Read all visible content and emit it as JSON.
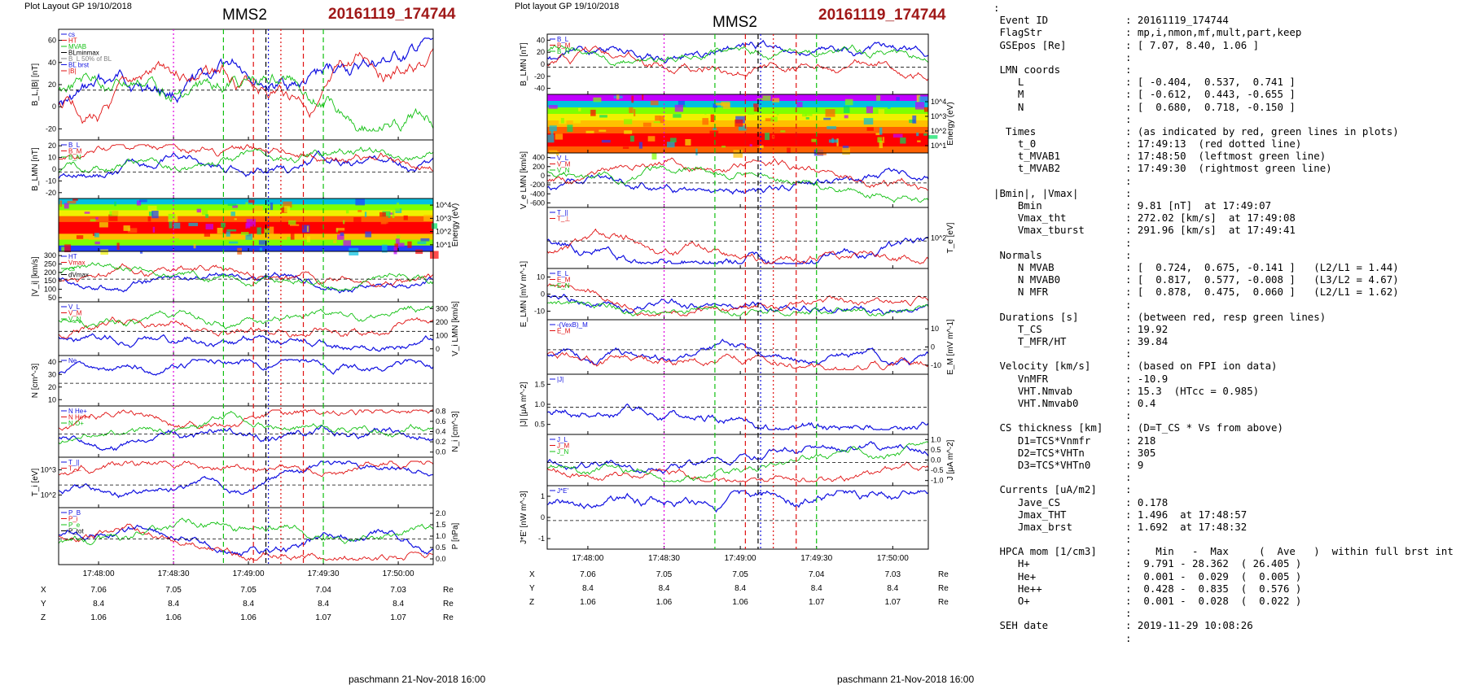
{
  "left_panel": {
    "layout_label": "Plot Layout GP 19/10/2018",
    "title": "MMS2",
    "event": "20161119_174744",
    "footer": "paschmann 21-Nov-2018 16:00"
  },
  "middle_panel": {
    "layout_label": "Plot layout GP 19/10/2018",
    "title": "MMS2",
    "event": "20161119_174744",
    "footer": "paschmann 21-Nov-2018 16:00"
  },
  "colors": {
    "blue": "#1010e0",
    "red": "#e01010",
    "green": "#10c010",
    "black": "#000000",
    "gray": "#808080",
    "magenta": "#e000e0",
    "event": "#a01818"
  },
  "chart_data": [
    {
      "type": "line",
      "panel": "left",
      "time_ticks": [
        "17:48:00",
        "17:48:30",
        "17:49:00",
        "17:49:30",
        "17:50:00"
      ],
      "time_range": [
        "17:47:44",
        "17:50:14"
      ],
      "markers": [
        {
          "kind": "magenta-dotted",
          "time": "17:48:30"
        },
        {
          "kind": "green-dashed",
          "time": "17:48:50"
        },
        {
          "kind": "black-dashed",
          "time": "17:49:07"
        },
        {
          "kind": "red-dashed",
          "time": "17:49:02"
        },
        {
          "kind": "red-dotted",
          "time": "17:49:13"
        },
        {
          "kind": "blue-dotted",
          "time": "17:49:08"
        },
        {
          "kind": "red-dashed",
          "time": "17:49:22"
        },
        {
          "kind": "green-dashed",
          "time": "17:49:30"
        }
      ],
      "ephemeris": {
        "labels": [
          "X",
          "Y",
          "Z"
        ],
        "unit": "Re",
        "columns": [
          {
            "X": "7.06",
            "Y": "8.4",
            "Z": "1.06"
          },
          {
            "X": "7.05",
            "Y": "8.4",
            "Z": "1.06"
          },
          {
            "X": "7.05",
            "Y": "8.4",
            "Z": "1.06"
          },
          {
            "X": "7.04",
            "Y": "8.4",
            "Z": "1.07"
          },
          {
            "X": "7.03",
            "Y": "8.4",
            "Z": "1.07"
          }
        ]
      },
      "panels": [
        {
          "ylabel": "B_L,|B| [nT]",
          "ticks": [
            "60",
            "40",
            "20",
            "0",
            "-20"
          ],
          "ylim": [
            -30,
            60
          ],
          "legend": [
            "cs",
            "HT",
            "MVAB",
            "BLminmax",
            "B_L 50% of BL",
            "BL brst",
            "|B|"
          ]
        },
        {
          "ylabel": "B_LMN [nT]",
          "ticks": [
            "20",
            "10",
            "0",
            "-10",
            "-20"
          ],
          "ylim": [
            -30,
            30
          ],
          "legend": [
            "B_L",
            "B_M",
            "B_N"
          ]
        },
        {
          "ylabel": "Energy (eV)",
          "ticks": [
            "10^4",
            "10^3",
            "10^2",
            "10^1"
          ],
          "type": "spectrogram"
        },
        {
          "ylabel": "|V_i| [km/s]",
          "ticks": [
            "300",
            "250",
            "200",
            "150",
            "100",
            "50"
          ],
          "ylim": [
            50,
            300
          ],
          "legend": [
            "HT",
            "Vmax",
            "cs",
            "dVmax"
          ]
        },
        {
          "ylabel": "V_i LMN [km/s]",
          "ticks": [
            "300",
            "200",
            "100",
            "0"
          ],
          "ylim": [
            -50,
            300
          ],
          "legend": [
            "V_L",
            "V_M",
            "V_N"
          ]
        },
        {
          "ylabel": "N [cm^-3]",
          "ticks": [
            "40",
            "30",
            "20",
            "10"
          ],
          "ylim": [
            0,
            50
          ],
          "legend": [
            "Ne"
          ]
        },
        {
          "ylabel": "N_i [cm^-3]",
          "ticks": [
            "0.8",
            "0.6",
            "0.4",
            "0.2",
            "0.0"
          ],
          "ylim": [
            0,
            0.8
          ],
          "legend": [
            "N He+",
            "N He++",
            "N O+"
          ]
        },
        {
          "ylabel": "T_i [eV]",
          "ticks": [
            "10^3",
            "10^2"
          ],
          "legend": [
            "T_||",
            "T_⊥"
          ]
        },
        {
          "ylabel": "P [nPa]",
          "ticks": [
            "2.0",
            "1.5",
            "1.0",
            "0.5",
            "0.0"
          ],
          "ylim": [
            0,
            2
          ],
          "legend": [
            "P_B",
            "P_i",
            "P_e",
            "P_tot"
          ]
        }
      ]
    },
    {
      "type": "line",
      "panel": "middle",
      "time_ticks": [
        "17:48:00",
        "17:48:30",
        "17:49:00",
        "17:49:30",
        "17:50:00"
      ],
      "time_range": [
        "17:47:44",
        "17:50:14"
      ],
      "ephemeris": {
        "labels": [
          "X",
          "Y",
          "Z"
        ],
        "unit": "Re",
        "columns": [
          {
            "X": "7.06",
            "Y": "8.4",
            "Z": "1.06"
          },
          {
            "X": "7.05",
            "Y": "8.4",
            "Z": "1.06"
          },
          {
            "X": "7.05",
            "Y": "8.4",
            "Z": "1.06"
          },
          {
            "X": "7.04",
            "Y": "8.4",
            "Z": "1.07"
          },
          {
            "X": "7.03",
            "Y": "8.4",
            "Z": "1.07"
          }
        ]
      },
      "panels": [
        {
          "ylabel": "B_LMN [nT]",
          "ticks": [
            "40",
            "20",
            "0",
            "-20",
            "-40"
          ],
          "ylim": [
            -50,
            45
          ],
          "legend": [
            "B_L",
            "B_M",
            "B_N"
          ]
        },
        {
          "ylabel": "Energy (eV)",
          "ticks": [
            "10^4",
            "10^3",
            "10^2",
            "10^1"
          ],
          "type": "spectrogram"
        },
        {
          "ylabel": "V_e LMN [km/s]",
          "ticks": [
            "400",
            "200",
            "0",
            "-200",
            "-400",
            "-600"
          ],
          "ylim": [
            -650,
            450
          ],
          "legend": [
            "V_L",
            "V_M",
            "V_N"
          ]
        },
        {
          "ylabel": "T_e [eV]",
          "ticks": [
            "10^2"
          ],
          "legend": [
            "T_||",
            "T_⊥"
          ]
        },
        {
          "ylabel": "E_LMN [mV m^-1]",
          "ticks": [
            "10",
            "0",
            "-10"
          ],
          "ylim": [
            -15,
            15
          ],
          "legend": [
            "E_L",
            "E_M",
            "E_N"
          ]
        },
        {
          "ylabel": "E_M [mV m^-1]",
          "ticks": [
            "10",
            "0",
            "-10"
          ],
          "ylim": [
            -15,
            15
          ],
          "legend": [
            "-(VexB)_M",
            "E_M"
          ]
        },
        {
          "ylabel": "|J| [μA m^-2]",
          "ticks": [
            "1.5",
            "1.0",
            "0.5"
          ],
          "ylim": [
            0,
            1.7
          ],
          "legend": [
            "|J|"
          ]
        },
        {
          "ylabel": "J [μA m^-2]",
          "ticks": [
            "1.0",
            "0.5",
            "0.0",
            "-0.5",
            "-1.0"
          ],
          "ylim": [
            -1.3,
            1.2
          ],
          "legend": [
            "J_L",
            "J_M",
            "J_N"
          ]
        },
        {
          "ylabel": "J*E' [nW m^-3]",
          "ticks": [
            "1",
            "0",
            "-1"
          ],
          "ylim": [
            -1.5,
            1.5
          ],
          "legend": [
            "J*E'"
          ]
        }
      ]
    }
  ],
  "info": {
    "rows": [
      {
        "k": ":",
        "v": ""
      },
      {
        "k": " Event ID",
        "v": ": 20161119_174744"
      },
      {
        "k": " FlagStr",
        "v": ": mp,i,nmon,mf,mult,part,keep"
      },
      {
        "k": " GSEpos [Re]",
        "v": ": [ 7.07, 8.40, 1.06 ]"
      },
      {
        "k": "",
        "v": ":"
      },
      {
        "k": " LMN coords",
        "v": ":"
      },
      {
        "k": "    L",
        "v": ": [ -0.404,  0.537,  0.741 ]"
      },
      {
        "k": "    M",
        "v": ": [ -0.612,  0.443, -0.655 ]"
      },
      {
        "k": "    N",
        "v": ": [  0.680,  0.718, -0.150 ]"
      },
      {
        "k": "",
        "v": ":"
      },
      {
        "k": "  Times",
        "v": ": (as indicated by red, green lines in plots)"
      },
      {
        "k": "    t_0",
        "v": ": 17:49:13  (red dotted line)"
      },
      {
        "k": "    t_MVAB1",
        "v": ": 17:48:50  (leftmost green line)"
      },
      {
        "k": "    t_MVAB2",
        "v": ": 17:49:30  (rightmost green line)"
      },
      {
        "k": "",
        "v": ":"
      },
      {
        "k": "|Bmin|, |Vmax|",
        "v": ":"
      },
      {
        "k": "    Bmin",
        "v": ": 9.81 [nT]  at 17:49:07"
      },
      {
        "k": "    Vmax_tht",
        "v": ": 272.02 [km/s]  at 17:49:08"
      },
      {
        "k": "    Vmax_tburst",
        "v": ": 291.96 [km/s]  at 17:49:41"
      },
      {
        "k": "",
        "v": ":"
      },
      {
        "k": " Normals",
        "v": ":"
      },
      {
        "k": "    N MVAB",
        "v": ": [  0.724,  0.675, -0.141 ]   (L2/L1 = 1.44)"
      },
      {
        "k": "    N MVAB0",
        "v": ": [  0.817,  0.577, -0.008 ]   (L3/L2 = 4.67)"
      },
      {
        "k": "    N MFR",
        "v": ": [  0.878,  0.475,  0.060 ]   (L2/L1 = 1.62)"
      },
      {
        "k": "",
        "v": ":"
      },
      {
        "k": " Durations [s]",
        "v": ": (between red, resp green lines)"
      },
      {
        "k": "    T_CS",
        "v": ": 19.92"
      },
      {
        "k": "    T_MFR/HT",
        "v": ": 39.84"
      },
      {
        "k": "",
        "v": ":"
      },
      {
        "k": " Velocity [km/s]",
        "v": ": (based on FPI ion data)"
      },
      {
        "k": "    VnMFR",
        "v": ": -10.9"
      },
      {
        "k": "    VHT.Nmvab",
        "v": ": 15.3  (HTcc = 0.985)"
      },
      {
        "k": "    VHT.Nmvab0",
        "v": ": 0.4"
      },
      {
        "k": "",
        "v": ":"
      },
      {
        "k": " CS thickness [km]",
        "v": ": (D=T_CS * Vs from above)"
      },
      {
        "k": "    D1=TCS*Vnmfr",
        "v": ": 218"
      },
      {
        "k": "    D2=TCS*VHTn",
        "v": ": 305"
      },
      {
        "k": "    D3=TCS*VHTn0",
        "v": ": 9"
      },
      {
        "k": "",
        "v": ":"
      },
      {
        "k": " Currents [uA/m2]",
        "v": ":"
      },
      {
        "k": "    Jave_CS",
        "v": ": 0.178"
      },
      {
        "k": "    Jmax_THT",
        "v": ": 1.496  at 17:48:57"
      },
      {
        "k": "    Jmax_brst",
        "v": ": 1.692  at 17:48:32"
      },
      {
        "k": "",
        "v": ":"
      },
      {
        "k": " HPCA mom [1/cm3]",
        "v": ":    Min   -  Max     (  Ave   )  within full brst int"
      },
      {
        "k": "    H+",
        "v": ":  9.791 - 28.362  ( 26.405 )"
      },
      {
        "k": "    He+",
        "v": ":  0.001 -  0.029  (  0.005 )"
      },
      {
        "k": "    He++",
        "v": ":  0.428 -  0.835  (  0.576 )"
      },
      {
        "k": "    O+",
        "v": ":  0.001 -  0.028  (  0.022 )"
      },
      {
        "k": "",
        "v": ":"
      },
      {
        "k": " SEH date",
        "v": ": 2019-11-29 10:08:26"
      },
      {
        "k": "",
        "v": ":"
      }
    ]
  }
}
